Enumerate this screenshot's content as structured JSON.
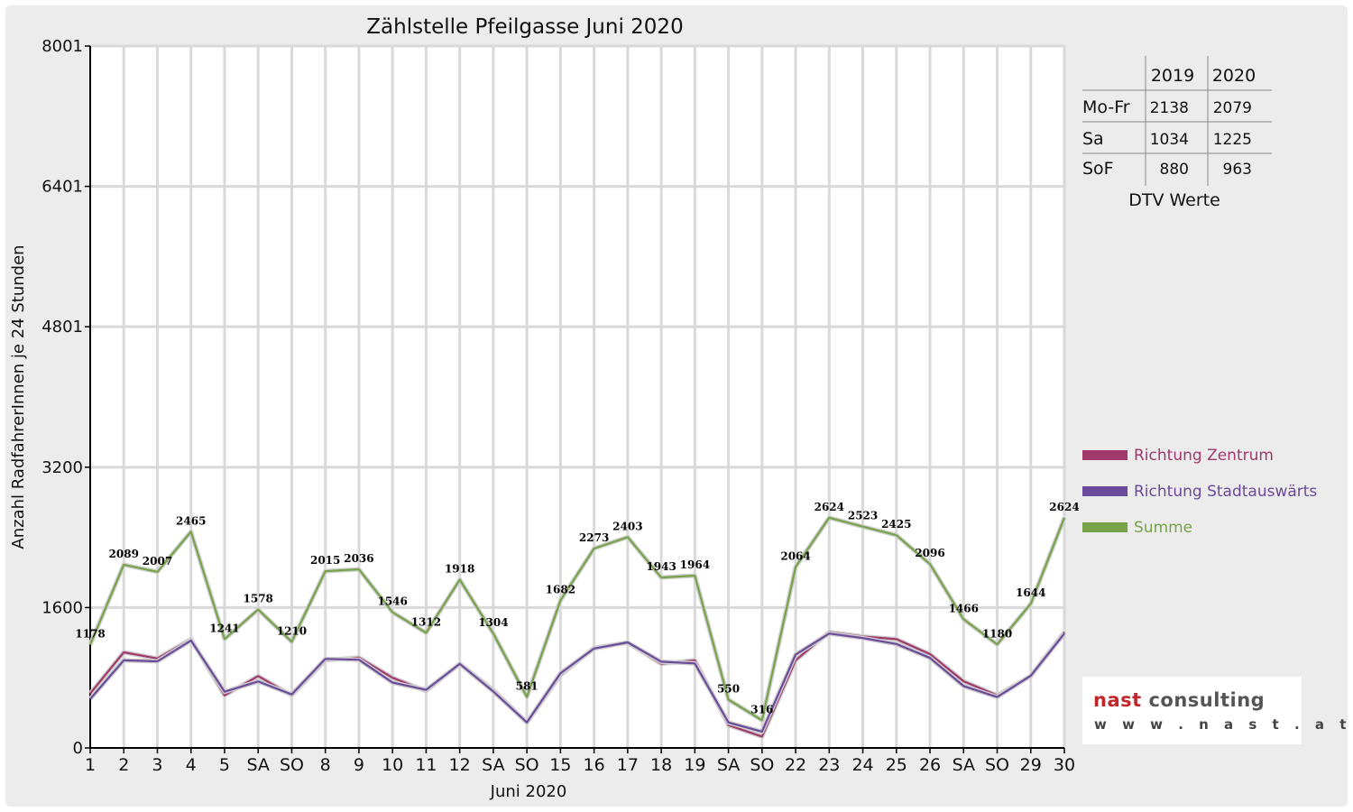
{
  "chart_data": {
    "type": "line",
    "title": "Zählstelle Pfeilgasse Juni 2020",
    "xlabel": "Juni 2020",
    "ylabel": "Anzahl RadfahrerInnen je 24 Stunden",
    "ylim": [
      0,
      8001
    ],
    "yticks": [
      "0",
      "1600",
      "3200",
      "4801",
      "6401",
      "8001"
    ],
    "ytick_values": [
      0,
      1600,
      3200,
      4801,
      6401,
      8001
    ],
    "grid": true,
    "legend_position": "right",
    "categories": [
      "1",
      "2",
      "3",
      "4",
      "5",
      "SA",
      "SO",
      "8",
      "9",
      "10",
      "11",
      "12",
      "SA",
      "SO",
      "15",
      "16",
      "17",
      "18",
      "19",
      "SA",
      "SO",
      "22",
      "23",
      "24",
      "25",
      "26",
      "SA",
      "SO",
      "29",
      "30"
    ],
    "red_categories": [
      0,
      6,
      10,
      13,
      20,
      27
    ],
    "series": [
      {
        "name": "Richtung Zentrum",
        "color": "#a0386a",
        "values": [
          620,
          1090,
          1020,
          1240,
          600,
          820,
          600,
          1000,
          1030,
          800,
          650,
          960,
          660,
          290,
          830,
          1140,
          1200,
          960,
          1000,
          260,
          130,
          1000,
          1320,
          1270,
          1240,
          1070,
          760,
          600,
          820,
          1320
        ]
      },
      {
        "name": "Richtung Stadtauswärts",
        "color": "#6a4a9a",
        "values": [
          558,
          999,
          987,
          1225,
          641,
          758,
          610,
          1015,
          1006,
          746,
          662,
          958,
          644,
          291,
          852,
          1133,
          1203,
          983,
          964,
          290,
          186,
          1064,
          1304,
          1253,
          1185,
          1026,
          706,
          580,
          824,
          1304
        ]
      },
      {
        "name": "Summe",
        "color": "#76a24a",
        "values": [
          1178,
          2089,
          2007,
          2465,
          1241,
          1578,
          1210,
          2015,
          2036,
          1546,
          1312,
          1918,
          1304,
          581,
          1682,
          2273,
          2403,
          1943,
          1964,
          550,
          316,
          2064,
          2624,
          2523,
          2425,
          2096,
          1466,
          1180,
          1644,
          2624
        ]
      }
    ],
    "data_labels": [
      "1178",
      "2089",
      "2007",
      "2465",
      "1241",
      "1578",
      "1210",
      "2015",
      "2036",
      "1546",
      "1312",
      "1918",
      "1304",
      "581",
      "1682",
      "2273",
      "2403",
      "1943",
      "1964",
      "550",
      "316",
      "2064",
      "2624",
      "2523",
      "2425",
      "2096",
      "1466",
      "1180",
      "1644",
      "2624"
    ]
  },
  "dtv_table": {
    "caption": "DTV Werte",
    "columns": [
      "2019",
      "2020"
    ],
    "rows": [
      {
        "label": "Mo-Fr",
        "v2019": "2138",
        "v2020": "2079"
      },
      {
        "label": "Sa",
        "v2019": "1034",
        "v2020": "1225"
      },
      {
        "label": "SoF",
        "v2019": "880",
        "v2020": "963"
      }
    ]
  },
  "logo": {
    "brand_a": "nast",
    "brand_b": "consulting",
    "url": "w w w . n a s t . a t"
  }
}
